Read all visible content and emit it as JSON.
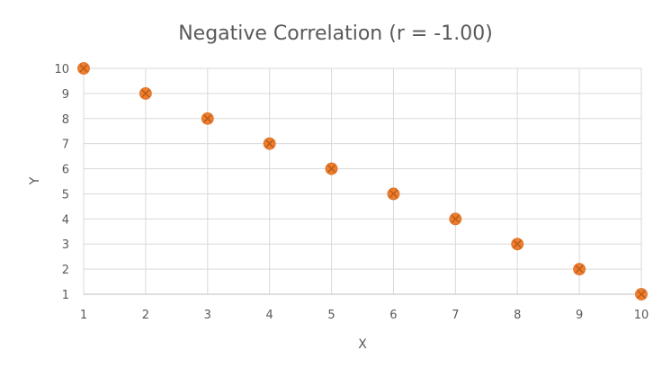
{
  "chart_data": {
    "type": "scatter",
    "title": "Negative Correlation (r = -1.00)",
    "xlabel": "X",
    "ylabel": "Y",
    "xlim": [
      1,
      10
    ],
    "ylim": [
      1,
      10
    ],
    "x_ticks": [
      1,
      2,
      3,
      4,
      5,
      6,
      7,
      8,
      9,
      10
    ],
    "y_ticks": [
      1,
      2,
      3,
      4,
      5,
      6,
      7,
      8,
      9,
      10
    ],
    "grid": true,
    "legend": "none",
    "marker_color": "#ed7d31",
    "series": [
      {
        "x": [
          1,
          2,
          3,
          4,
          5,
          6,
          7,
          8,
          9,
          10
        ],
        "y": [
          10,
          9,
          8,
          7,
          6,
          5,
          4,
          3,
          2,
          1
        ]
      }
    ]
  }
}
